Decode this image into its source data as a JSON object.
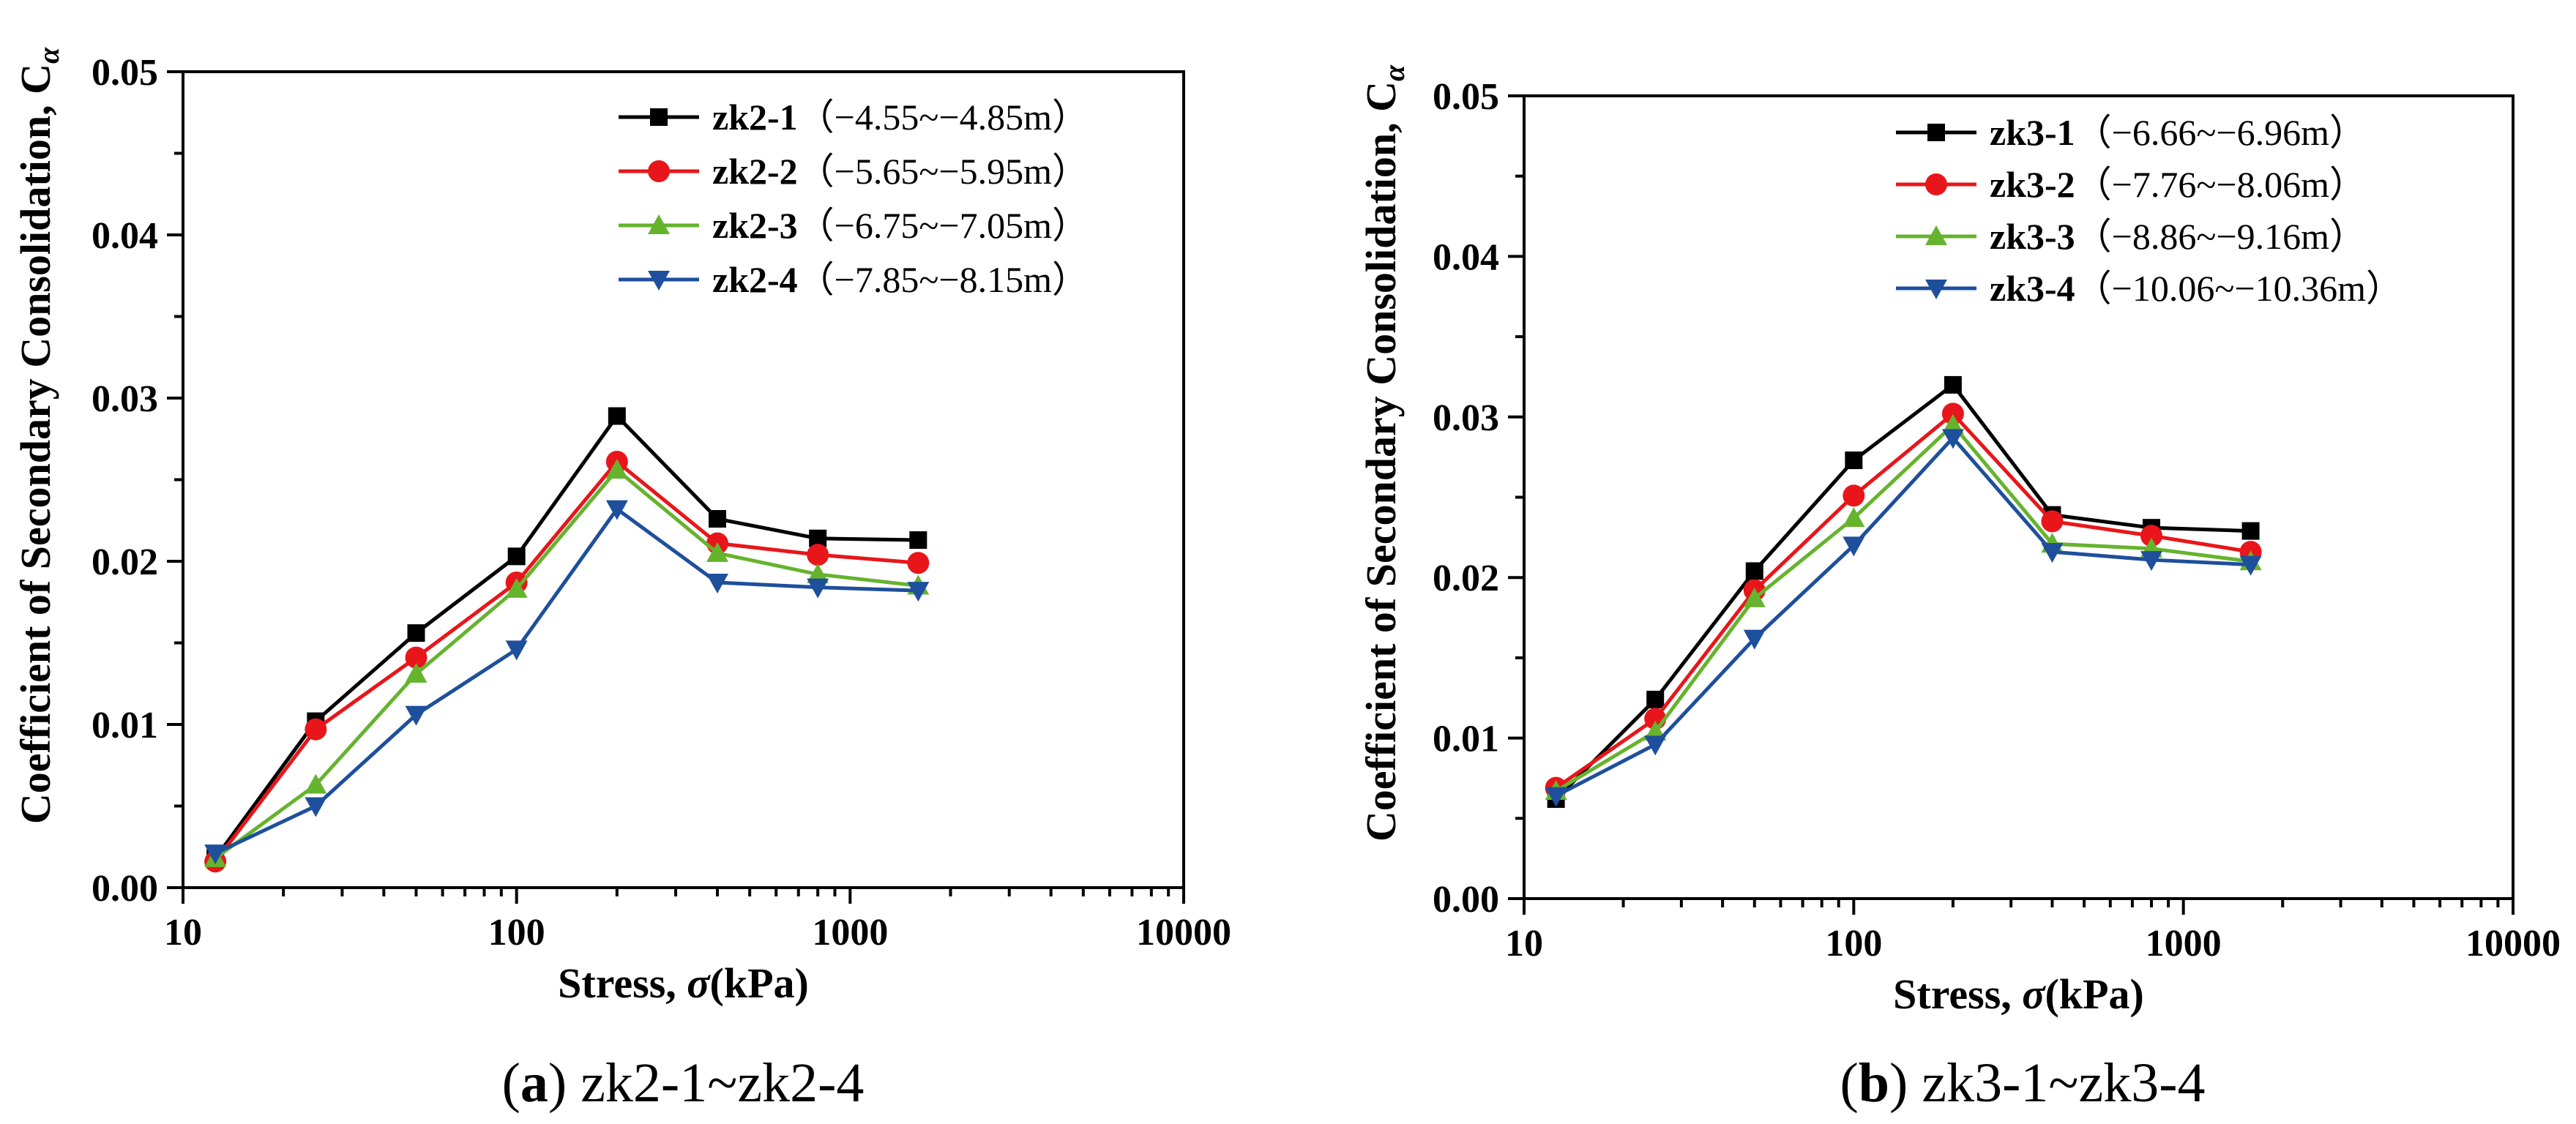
{
  "chart_data": [
    {
      "type": "line",
      "caption_label": "a",
      "caption_text": " zk2-1~zk2-4",
      "xlabel": "Stress, ",
      "xlabel_symbol": "σ",
      "xlabel_unit": "(kPa)",
      "ylabel": "Coefficient of Secondary Consolidation, C",
      "ylabel_subscript": "α",
      "xscale": "log",
      "xlim": [
        10,
        10000
      ],
      "ylim": [
        0,
        0.05
      ],
      "xticks": [
        10,
        100,
        1000,
        10000
      ],
      "xtick_labels": [
        "10",
        "100",
        "1000",
        "10000"
      ],
      "yticks": [
        0,
        0.01,
        0.02,
        0.03,
        0.04,
        0.05
      ],
      "ytick_labels": [
        "0.00",
        "0.01",
        "0.02",
        "0.03",
        "0.04",
        "0.05"
      ],
      "legend_position": "top-right",
      "x": [
        12.5,
        25,
        50,
        100,
        200,
        400,
        800,
        1600
      ],
      "series": [
        {
          "name": "zk2-1",
          "range": "（−4.55~−4.85m）",
          "color": "#000000",
          "marker": "square",
          "values": [
            0.0018,
            0.0102,
            0.0156,
            0.0203,
            0.0289,
            0.0226,
            0.0214,
            0.0213
          ]
        },
        {
          "name": "zk2-2",
          "range": "（−5.65~−5.95m）",
          "color": "#e8161a",
          "marker": "circle",
          "values": [
            0.0016,
            0.0097,
            0.0141,
            0.0187,
            0.0261,
            0.0211,
            0.0204,
            0.0199
          ]
        },
        {
          "name": "zk2-3",
          "range": "（−6.75~−7.05m）",
          "color": "#66b32e",
          "marker": "triangle-up",
          "values": [
            0.0018,
            0.0063,
            0.0131,
            0.0183,
            0.0256,
            0.0205,
            0.0192,
            0.0185
          ]
        },
        {
          "name": "zk2-4",
          "range": "（−7.85~−8.15m）",
          "color": "#1e4f9c",
          "marker": "triangle-down",
          "values": [
            0.0021,
            0.005,
            0.0106,
            0.0146,
            0.0232,
            0.0187,
            0.0184,
            0.0182
          ]
        }
      ]
    },
    {
      "type": "line",
      "caption_label": "b",
      "caption_text": " zk3-1~zk3-4",
      "xlabel": "Stress, ",
      "xlabel_symbol": "σ",
      "xlabel_unit": "(kPa)",
      "ylabel": "Coefficient of Secondary Consolidation, C",
      "ylabel_subscript": "α",
      "xscale": "log",
      "xlim": [
        10,
        10000
      ],
      "ylim": [
        0,
        0.05
      ],
      "xticks": [
        10,
        100,
        1000,
        10000
      ],
      "xtick_labels": [
        "10",
        "100",
        "1000",
        "10000"
      ],
      "yticks": [
        0,
        0.01,
        0.02,
        0.03,
        0.04,
        0.05
      ],
      "ytick_labels": [
        "0.00",
        "0.01",
        "0.02",
        "0.03",
        "0.04",
        "0.05"
      ],
      "legend_position": "top-right",
      "x": [
        12.5,
        25,
        50,
        100,
        200,
        400,
        800,
        1600
      ],
      "series": [
        {
          "name": "zk3-1",
          "range": "（−6.66~−6.96m）",
          "color": "#000000",
          "marker": "square",
          "values": [
            0.0062,
            0.0124,
            0.0204,
            0.0273,
            0.032,
            0.0239,
            0.0231,
            0.0229
          ]
        },
        {
          "name": "zk3-2",
          "range": "（−7.76~−8.06m）",
          "color": "#e8161a",
          "marker": "circle",
          "values": [
            0.0069,
            0.0112,
            0.0192,
            0.0251,
            0.0302,
            0.0235,
            0.0226,
            0.0216
          ]
        },
        {
          "name": "zk3-3",
          "range": "（−8.86~−9.16m）",
          "color": "#66b32e",
          "marker": "triangle-up",
          "values": [
            0.0067,
            0.0104,
            0.0187,
            0.0237,
            0.0295,
            0.0221,
            0.0218,
            0.021
          ]
        },
        {
          "name": "zk3-4",
          "range": "（−10.06~−10.36m）",
          "color": "#1e4f9c",
          "marker": "triangle-down",
          "values": [
            0.0064,
            0.0096,
            0.0162,
            0.022,
            0.0287,
            0.0216,
            0.0211,
            0.0208
          ]
        }
      ]
    }
  ]
}
